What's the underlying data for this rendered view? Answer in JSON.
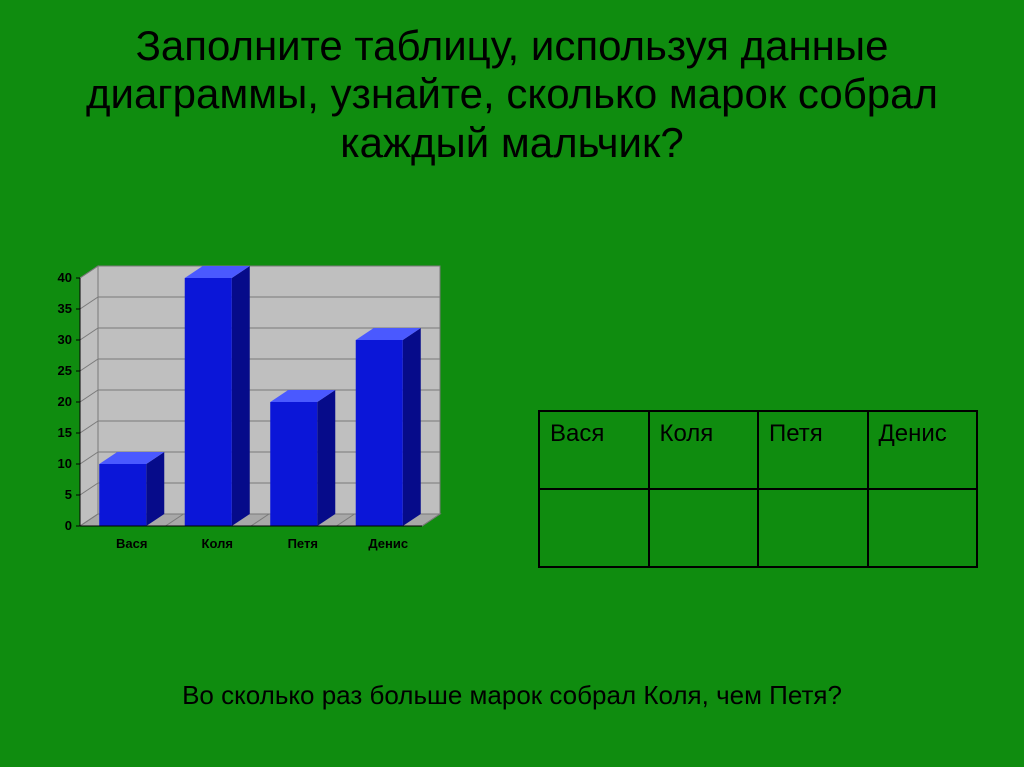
{
  "background_color": "#0f8c0f",
  "title": "Заполните таблицу, используя данные диаграммы, узнайте, сколько марок собрал каждый мальчик?",
  "title_fontsize": 42,
  "title_color": "#000000",
  "chart": {
    "type": "bar-3d",
    "categories": [
      "Вася",
      "Коля",
      "Петя",
      "Денис"
    ],
    "values": [
      10,
      40,
      20,
      30
    ],
    "ylim": [
      0,
      40
    ],
    "ytick_step": 5,
    "yticks": [
      0,
      5,
      10,
      15,
      20,
      25,
      30,
      35,
      40
    ],
    "bar_color": "#0b16d8",
    "bar_top_color": "#4a59ff",
    "bar_side_color": "#060b8a",
    "grid_color": "#7a7a7a",
    "floor_color": "#a8a8a8",
    "back_wall_color": "#bfbfbf",
    "axis_label_color": "#000000",
    "axis_label_fontsize": 13,
    "axis_label_weight": "bold",
    "cat_label_fontsize": 13,
    "cat_label_weight": "bold",
    "bar_width": 0.55
  },
  "table": {
    "headers": [
      "Вася",
      "Коля",
      "Петя",
      "Денис"
    ],
    "rows": [
      [
        "",
        "",
        "",
        ""
      ]
    ],
    "border_color": "#000000",
    "header_fontsize": 24,
    "col_widths_pct": [
      25,
      25,
      25,
      25
    ]
  },
  "question": "Во сколько раз больше марок собрал Коля, чем Петя?",
  "question_fontsize": 26,
  "question_color": "#000000"
}
